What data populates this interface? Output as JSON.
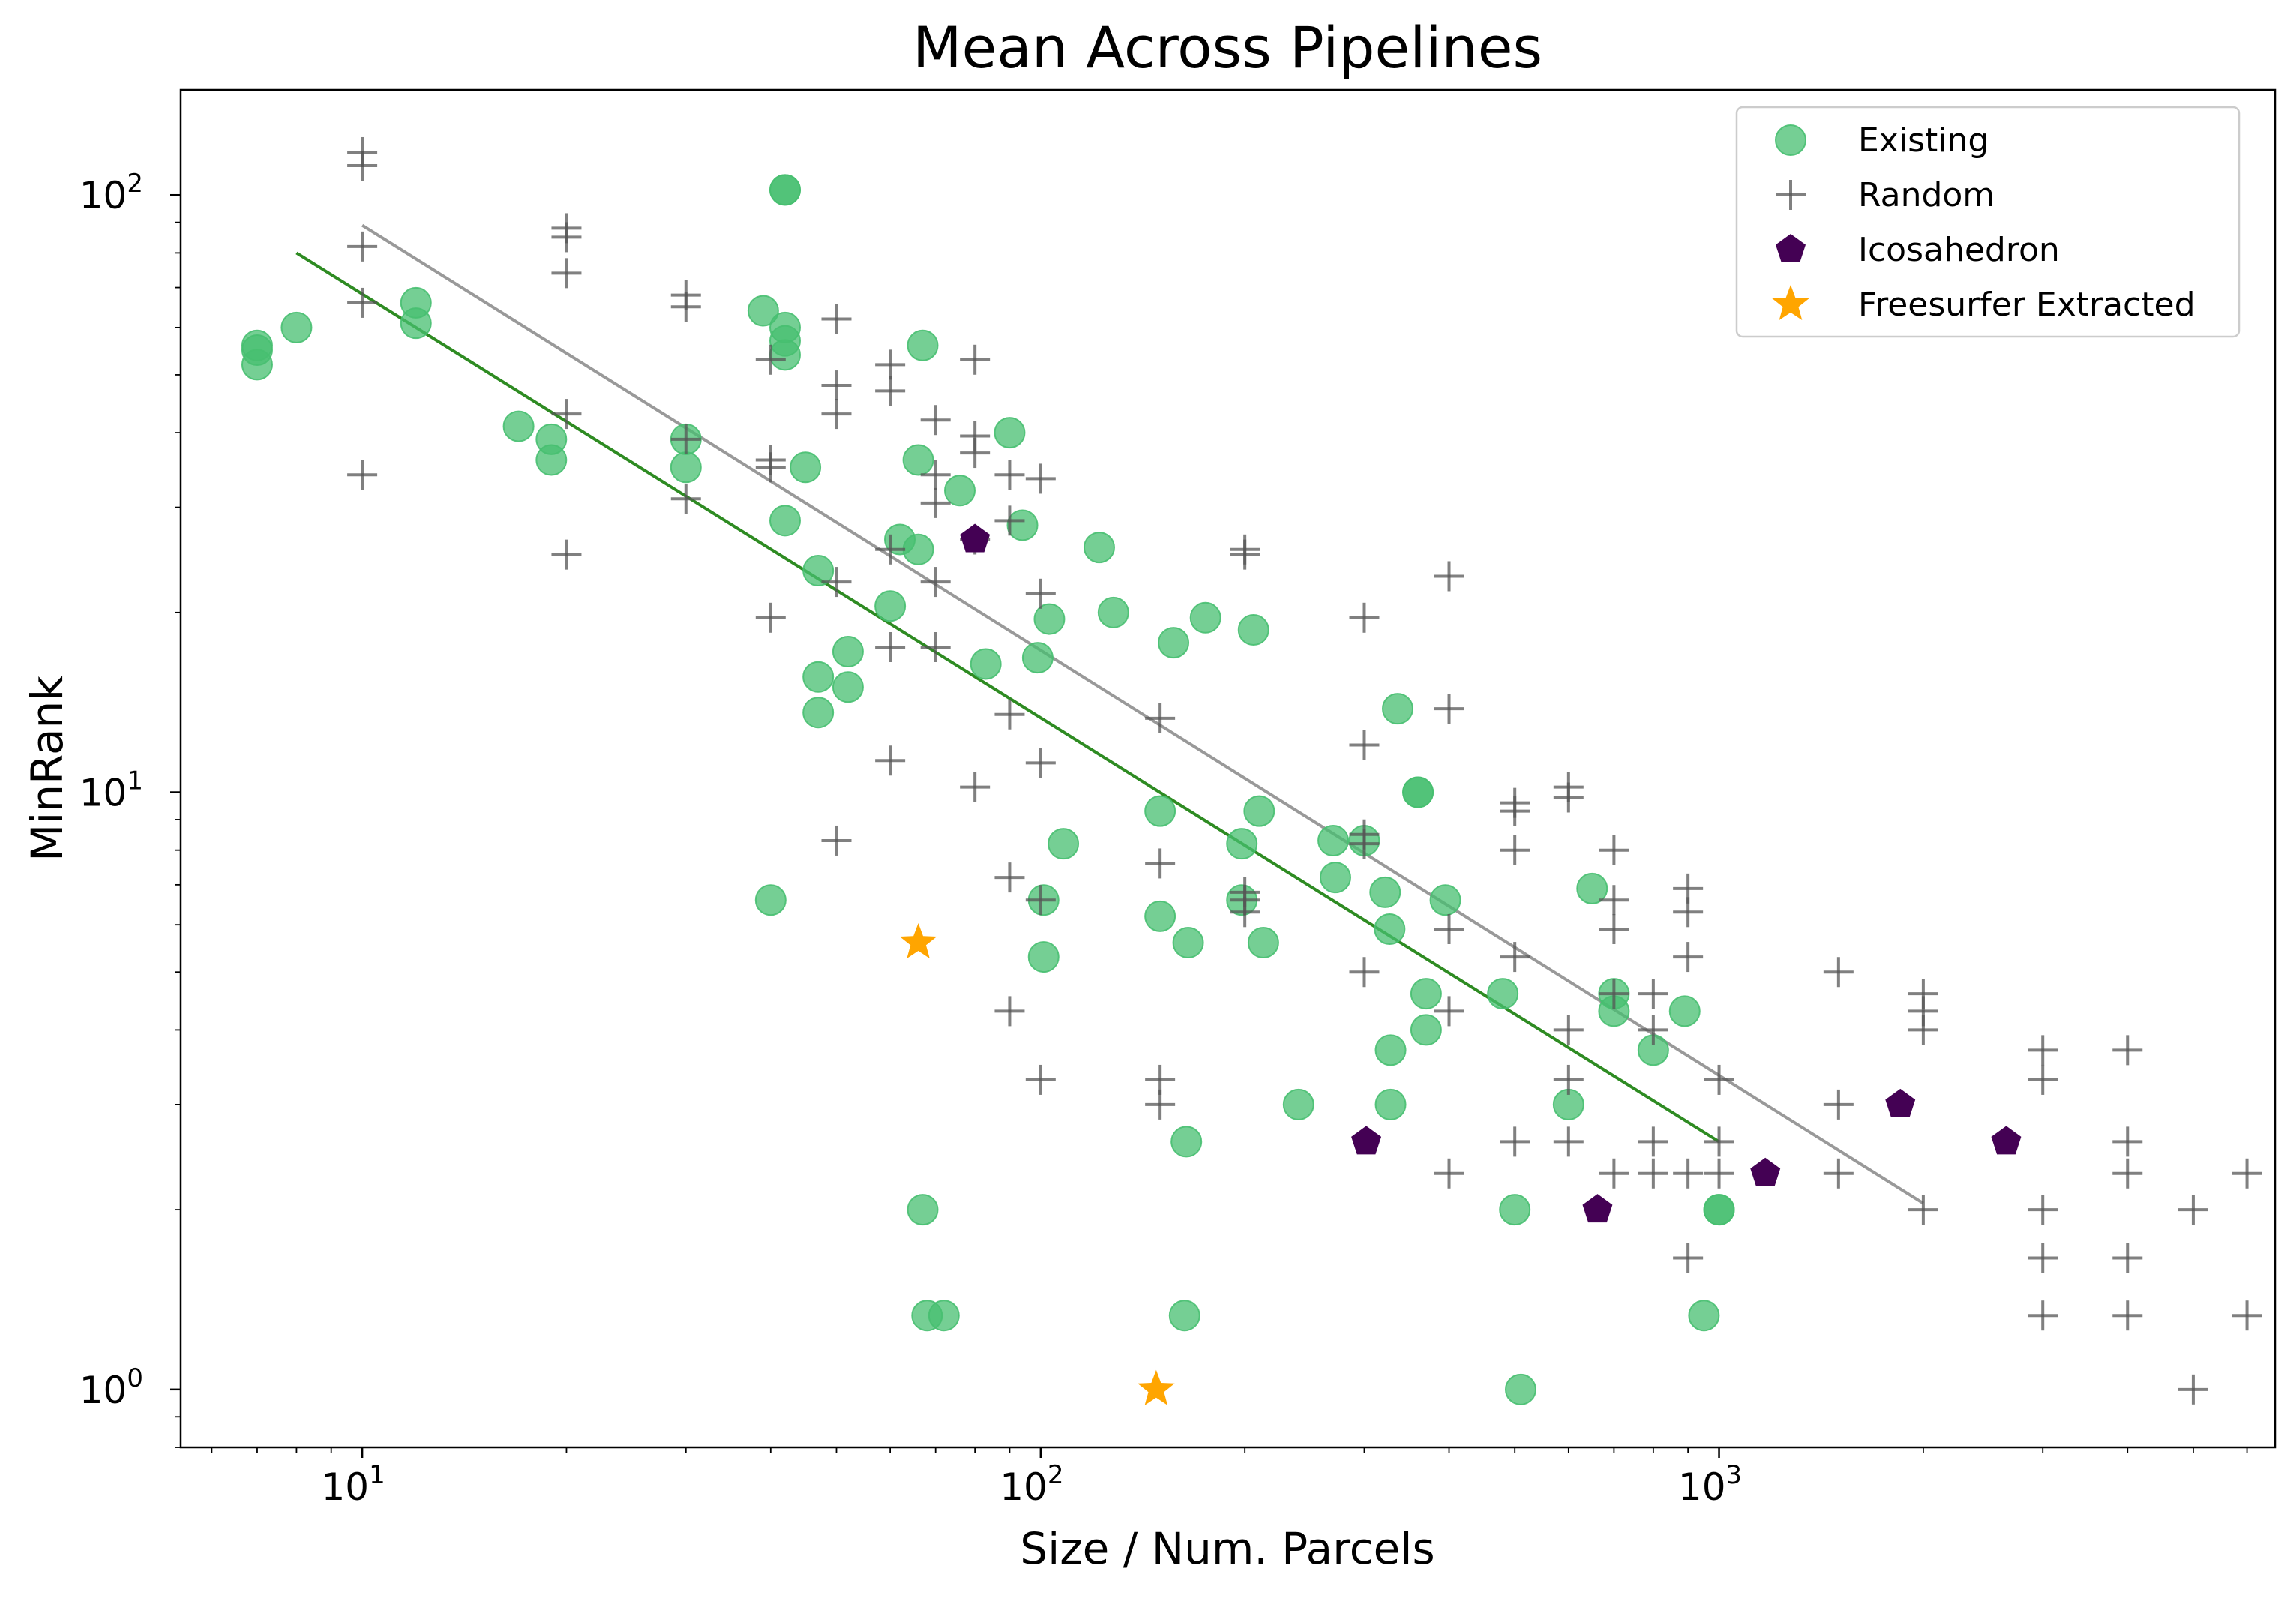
{
  "chart_data": {
    "type": "scatter",
    "title": "Mean Across Pipelines",
    "xlabel": "Size / Num. Parcels",
    "ylabel": "MinRank",
    "xscale": "log",
    "yscale": "log",
    "xlim": [
      5.4,
      6600
    ],
    "ylim": [
      0.8,
      150
    ],
    "xticks": [
      {
        "base": "10",
        "exp": "1",
        "value": 10
      },
      {
        "base": "10",
        "exp": "2",
        "value": 100
      },
      {
        "base": "10",
        "exp": "3",
        "value": 1000
      }
    ],
    "yticks": [
      {
        "base": "10",
        "exp": "0",
        "value": 1
      },
      {
        "base": "10",
        "exp": "1",
        "value": 10
      },
      {
        "base": "10",
        "exp": "2",
        "value": 100
      }
    ],
    "legend_position": "top-right",
    "legend": [
      "Existing",
      "Random",
      "Icosahedron",
      "Freesurfer Extracted"
    ],
    "series": [
      {
        "name": "Existing",
        "marker": "circle",
        "color": "#47BF70",
        "points": [
          [
            7,
            52
          ],
          [
            7,
            55
          ],
          [
            7,
            56
          ],
          [
            8,
            60
          ],
          [
            12,
            61
          ],
          [
            12,
            66
          ],
          [
            17,
            41
          ],
          [
            19,
            36
          ],
          [
            19,
            39
          ],
          [
            30,
            35
          ],
          [
            30,
            39
          ],
          [
            39,
            64
          ],
          [
            40,
            6.6
          ],
          [
            42,
            102
          ],
          [
            42,
            102
          ],
          [
            42,
            54
          ],
          [
            42,
            57
          ],
          [
            42,
            60
          ],
          [
            42,
            28.5
          ],
          [
            45,
            35
          ],
          [
            47,
            23.5
          ],
          [
            47,
            13.6
          ],
          [
            47,
            15.6
          ],
          [
            52,
            17.2
          ],
          [
            52,
            15
          ],
          [
            60,
            20.5
          ],
          [
            62,
            26.5
          ],
          [
            66,
            25.5
          ],
          [
            66,
            36
          ],
          [
            67,
            56
          ],
          [
            67,
            2
          ],
          [
            68,
            1.33
          ],
          [
            72,
            1.33
          ],
          [
            76,
            32
          ],
          [
            83,
            16.4
          ],
          [
            90,
            40
          ],
          [
            94,
            28
          ],
          [
            99,
            16.8
          ],
          [
            101,
            6.6
          ],
          [
            101,
            5.3
          ],
          [
            103,
            19.5
          ],
          [
            108,
            8.2
          ],
          [
            122,
            25.7
          ],
          [
            128,
            20
          ],
          [
            150,
            9.3
          ],
          [
            150,
            6.2
          ],
          [
            157,
            17.8
          ],
          [
            163,
            1.33
          ],
          [
            164,
            2.6
          ],
          [
            165,
            5.6
          ],
          [
            175,
            19.6
          ],
          [
            198,
            8.2
          ],
          [
            198,
            6.6
          ],
          [
            206,
            18.7
          ],
          [
            210,
            9.3
          ],
          [
            213,
            5.6
          ],
          [
            240,
            3
          ],
          [
            270,
            8.3
          ],
          [
            272,
            7.2
          ],
          [
            300,
            8.3
          ],
          [
            322,
            6.8
          ],
          [
            327,
            5.9
          ],
          [
            328,
            3.7
          ],
          [
            328,
            3
          ],
          [
            336,
            13.8
          ],
          [
            360,
            10
          ],
          [
            360,
            10
          ],
          [
            370,
            4.6
          ],
          [
            370,
            4
          ],
          [
            395,
            6.6
          ],
          [
            480,
            4.6
          ],
          [
            500,
            2
          ],
          [
            510,
            1
          ],
          [
            600,
            3
          ],
          [
            650,
            6.9
          ],
          [
            700,
            4.6
          ],
          [
            700,
            4.3
          ],
          [
            800,
            3.7
          ],
          [
            890,
            4.3
          ],
          [
            950,
            1.33
          ],
          [
            1000,
            2
          ],
          [
            1000,
            2
          ]
        ]
      },
      {
        "name": "Random",
        "marker": "plus",
        "color": "#555555",
        "points": [
          [
            10,
            118
          ],
          [
            10,
            112
          ],
          [
            10,
            82
          ],
          [
            10,
            66
          ],
          [
            10,
            34
          ],
          [
            20,
            88
          ],
          [
            20,
            85
          ],
          [
            20,
            74
          ],
          [
            20,
            43
          ],
          [
            20,
            25
          ],
          [
            30,
            68
          ],
          [
            30,
            65
          ],
          [
            30,
            39
          ],
          [
            30,
            31
          ],
          [
            40,
            53
          ],
          [
            40,
            36
          ],
          [
            40,
            35
          ],
          [
            40,
            19.6
          ],
          [
            50,
            62
          ],
          [
            50,
            48
          ],
          [
            50,
            43
          ],
          [
            50,
            22.5
          ],
          [
            50,
            8.3
          ],
          [
            60,
            52
          ],
          [
            60,
            47
          ],
          [
            60,
            25.5
          ],
          [
            60,
            17.5
          ],
          [
            60,
            11.3
          ],
          [
            70,
            42
          ],
          [
            70,
            34
          ],
          [
            70,
            30.5
          ],
          [
            70,
            22.5
          ],
          [
            70,
            17.5
          ],
          [
            80,
            53
          ],
          [
            80,
            39.5
          ],
          [
            80,
            37
          ],
          [
            80,
            26.5
          ],
          [
            80,
            10.2
          ],
          [
            90,
            34
          ],
          [
            90,
            28.5
          ],
          [
            90,
            13.5
          ],
          [
            90,
            7.2
          ],
          [
            90,
            4.3
          ],
          [
            100,
            33.5
          ],
          [
            100,
            21.5
          ],
          [
            100,
            11.2
          ],
          [
            100,
            6.6
          ],
          [
            100,
            3.3
          ],
          [
            150,
            13.3
          ],
          [
            150,
            7.6
          ],
          [
            150,
            3.3
          ],
          [
            150,
            3
          ],
          [
            200,
            25.5
          ],
          [
            200,
            25
          ],
          [
            200,
            6.8
          ],
          [
            200,
            6.6
          ],
          [
            200,
            6.3
          ],
          [
            300,
            19.6
          ],
          [
            300,
            12
          ],
          [
            300,
            8.5
          ],
          [
            300,
            8.2
          ],
          [
            300,
            5
          ],
          [
            400,
            23
          ],
          [
            400,
            13.8
          ],
          [
            400,
            5.9
          ],
          [
            400,
            4.3
          ],
          [
            400,
            2.3
          ],
          [
            500,
            9.3
          ],
          [
            500,
            9.6
          ],
          [
            500,
            8
          ],
          [
            500,
            5.3
          ],
          [
            500,
            2.6
          ],
          [
            600,
            10.2
          ],
          [
            600,
            9.8
          ],
          [
            600,
            4
          ],
          [
            600,
            3.3
          ],
          [
            600,
            2.6
          ],
          [
            700,
            8
          ],
          [
            700,
            6.6
          ],
          [
            700,
            5.9
          ],
          [
            700,
            4.6
          ],
          [
            700,
            2.3
          ],
          [
            800,
            4.6
          ],
          [
            800,
            4
          ],
          [
            800,
            2.6
          ],
          [
            800,
            2.3
          ],
          [
            900,
            6.9
          ],
          [
            900,
            6.3
          ],
          [
            900,
            5.3
          ],
          [
            900,
            2.3
          ],
          [
            900,
            1.66
          ],
          [
            1000,
            3.3
          ],
          [
            1000,
            2.6
          ],
          [
            1000,
            2.3
          ],
          [
            1500,
            5
          ],
          [
            1500,
            3
          ],
          [
            1500,
            2.3
          ],
          [
            2000,
            4.6
          ],
          [
            2000,
            4.3
          ],
          [
            2000,
            4
          ],
          [
            2000,
            2
          ],
          [
            3000,
            3.7
          ],
          [
            3000,
            3.3
          ],
          [
            3000,
            2
          ],
          [
            3000,
            1.66
          ],
          [
            3000,
            1.33
          ],
          [
            4000,
            3.7
          ],
          [
            4000,
            2.6
          ],
          [
            4000,
            2.3
          ],
          [
            4000,
            1.66
          ],
          [
            4000,
            1.33
          ],
          [
            5000,
            2
          ],
          [
            5000,
            1
          ],
          [
            6000,
            2.3
          ],
          [
            6000,
            1.33
          ]
        ]
      },
      {
        "name": "Icosahedron",
        "marker": "pentagon",
        "color": "#440154",
        "points": [
          [
            80,
            26.5
          ],
          [
            302,
            2.6
          ],
          [
            662,
            2
          ],
          [
            1170,
            2.3
          ],
          [
            1850,
            3
          ],
          [
            2650,
            2.6
          ]
        ]
      },
      {
        "name": "Freesurfer Extracted",
        "marker": "star",
        "color": "#FFA500",
        "points": [
          [
            66,
            5.6
          ],
          [
            148,
            1
          ]
        ]
      }
    ],
    "fit_lines": [
      {
        "series": "Existing",
        "color": "#2E8B22",
        "points": [
          [
            8,
            80
          ],
          [
            1000,
            2.6
          ]
        ]
      },
      {
        "series": "Random",
        "color": "#999999",
        "points": [
          [
            10,
            89
          ],
          [
            2000,
            2.05
          ]
        ]
      }
    ]
  }
}
